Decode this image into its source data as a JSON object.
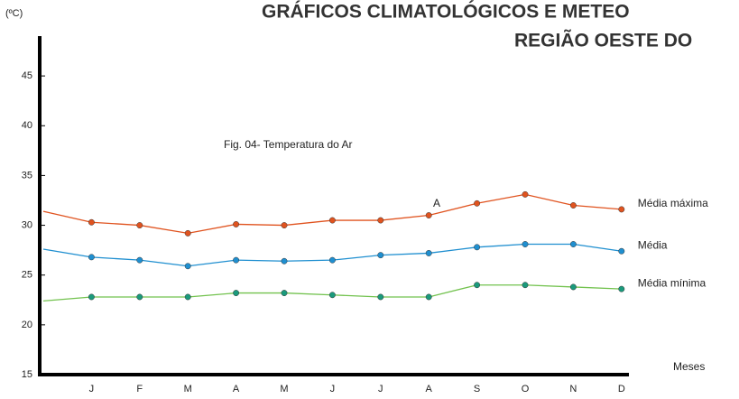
{
  "chart_data": {
    "type": "line",
    "title": "GRÁFICOS CLIMATOLÓGICOS E METEO",
    "subtitle": "REGIÃO OESTE DO",
    "y_label": "(ºC)",
    "x_label": "Meses",
    "annotation": "Fig. 04- Temperatura do Ar",
    "point_annotation": "A",
    "categories": [
      null,
      "J",
      "F",
      "M",
      "A",
      "M",
      "J",
      "J",
      "A",
      "S",
      "O",
      "N",
      "D"
    ],
    "series": [
      {
        "name": "Média máxima",
        "color": "#e0531f",
        "marker_color": "#e0531f",
        "values": [
          31.4,
          30.3,
          30.0,
          29.2,
          30.1,
          30.0,
          30.5,
          30.5,
          31.0,
          32.2,
          33.1,
          32.0,
          31.6
        ]
      },
      {
        "name": "Média",
        "color": "#1f8fd0",
        "marker_color": "#1f8fd0",
        "values": [
          27.6,
          26.8,
          26.5,
          25.9,
          26.5,
          26.4,
          26.5,
          27.0,
          27.2,
          27.8,
          28.1,
          28.1,
          27.4
        ]
      },
      {
        "name": "Média mínima",
        "color": "#72c24e",
        "marker_color": "#1a9a7c",
        "values": [
          22.4,
          22.8,
          22.8,
          22.8,
          23.2,
          23.2,
          23.0,
          22.8,
          22.8,
          24.0,
          24.0,
          23.8,
          23.6
        ]
      }
    ],
    "ylim": [
      15,
      49
    ],
    "yticks": [
      15,
      20,
      25,
      30,
      35,
      40,
      45
    ]
  }
}
